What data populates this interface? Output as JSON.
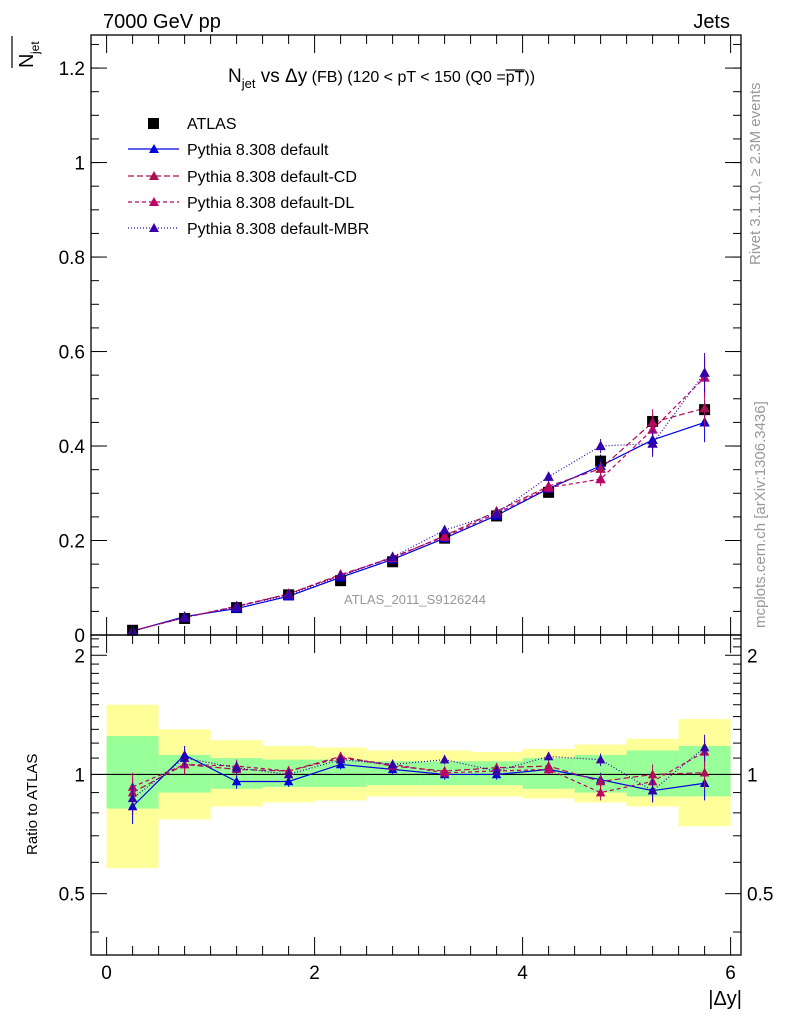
{
  "header": {
    "energy_label": "7000 GeV pp",
    "process_label": "Jets"
  },
  "side_texts": {
    "rivet": "Rivet 3.1.10, ≥ 2.3M events",
    "mcplots": "mcplots.cern.ch [arXiv:1306.3436]"
  },
  "analysis_label": "ATLAS_2011_S9126244",
  "colors": {
    "data": "#000000",
    "default": "#0000dd",
    "cd": "#aa1155",
    "dl": "#bb0066",
    "mbr": "#3300aa",
    "band_inner": "#99ff99",
    "band_outer": "#ffff99"
  },
  "chart_data": [
    {
      "type": "line",
      "panel": "main",
      "title": {
        "pre": "N",
        "sub": "jet",
        "mid": " vs Δy",
        "small": " (FB) (120 < pT < 150 (Q0 =",
        "over": "pT",
        "end": "))"
      },
      "ylabel": {
        "main": "N",
        "sub": "jet"
      },
      "xlim": [
        -0.15,
        6.1
      ],
      "ylim": [
        0,
        1.27
      ],
      "yticks": [
        0,
        0.2,
        0.4,
        0.6,
        0.8,
        1,
        1.2
      ],
      "ytick_labels": [
        "0",
        "0.2",
        "0.4",
        "0.6",
        "0.8",
        "1",
        "1.2"
      ],
      "x": [
        0.25,
        0.75,
        1.25,
        1.75,
        2.25,
        2.75,
        3.25,
        3.75,
        4.25,
        4.75,
        5.25,
        5.75
      ],
      "legend_placement": "top-left",
      "series": [
        {
          "name": "ATLAS",
          "key": "data",
          "marker": "square",
          "values": [
            0.01,
            0.035,
            0.058,
            0.085,
            0.115,
            0.155,
            0.205,
            0.252,
            0.302,
            0.368,
            0.452,
            0.477
          ],
          "errors": [
            0.003,
            0.004,
            0.005,
            0.006,
            0.006,
            0.007,
            0.008,
            0.009,
            0.011,
            0.014,
            0.017,
            0.02
          ]
        },
        {
          "name": "Pythia 8.308 default",
          "key": "default",
          "marker": "triangle",
          "dash": "",
          "values": [
            0.008,
            0.039,
            0.056,
            0.082,
            0.122,
            0.16,
            0.205,
            0.253,
            0.31,
            0.358,
            0.413,
            0.45
          ],
          "errors": [
            0.001,
            0.002,
            0.002,
            0.003,
            0.004,
            0.005,
            0.006,
            0.008,
            0.01,
            0.015,
            0.028,
            0.042
          ]
        },
        {
          "name": "Pythia 8.308 default-CD",
          "key": "cd",
          "marker": "triangle",
          "dash": "6,3",
          "values": [
            0.009,
            0.037,
            0.06,
            0.087,
            0.128,
            0.163,
            0.21,
            0.262,
            0.315,
            0.352,
            0.45,
            0.48
          ],
          "errors": [
            0.001,
            0.002,
            0.002,
            0.003,
            0.004,
            0.005,
            0.006,
            0.008,
            0.01,
            0.015,
            0.028,
            0.042
          ]
        },
        {
          "name": "Pythia 8.308 default-DL",
          "key": "dl",
          "marker": "triangle",
          "dash": "4,3",
          "values": [
            0.009,
            0.037,
            0.061,
            0.087,
            0.126,
            0.165,
            0.208,
            0.257,
            0.312,
            0.33,
            0.435,
            0.545
          ],
          "errors": [
            0.001,
            0.002,
            0.002,
            0.003,
            0.004,
            0.005,
            0.006,
            0.008,
            0.01,
            0.015,
            0.028,
            0.042
          ]
        },
        {
          "name": "Pythia 8.308 default-MBR",
          "key": "mbr",
          "marker": "triangle",
          "dash": "1,2",
          "values": [
            0.009,
            0.037,
            0.06,
            0.085,
            0.125,
            0.165,
            0.222,
            0.257,
            0.335,
            0.4,
            0.405,
            0.555
          ],
          "errors": [
            0.001,
            0.002,
            0.002,
            0.003,
            0.004,
            0.005,
            0.006,
            0.008,
            0.01,
            0.015,
            0.028,
            0.042
          ]
        }
      ]
    },
    {
      "type": "line",
      "panel": "ratio",
      "ylabel": "Ratio to ATLAS",
      "xlabel": "|Δy|",
      "xlim": [
        -0.15,
        6.1
      ],
      "ylim": [
        0.35,
        2.25
      ],
      "yticks": [
        0.5,
        1,
        2
      ],
      "ytick_labels": [
        "0.5",
        "1",
        "2"
      ],
      "xticks": [
        0,
        2,
        4,
        6
      ],
      "xtick_labels": [
        "0",
        "2",
        "4",
        "6"
      ],
      "bins": [
        [
          0,
          0.5
        ],
        [
          0.5,
          1
        ],
        [
          1,
          1.5
        ],
        [
          1.5,
          2
        ],
        [
          2,
          2.5
        ],
        [
          2.5,
          3
        ],
        [
          3,
          3.5
        ],
        [
          3.5,
          4
        ],
        [
          4,
          4.5
        ],
        [
          4.5,
          5
        ],
        [
          5,
          5.5
        ],
        [
          5.5,
          6
        ]
      ],
      "band_inner": [
        [
          0.82,
          1.25
        ],
        [
          0.9,
          1.12
        ],
        [
          0.92,
          1.1
        ],
        [
          0.93,
          1.09
        ],
        [
          0.93,
          1.09
        ],
        [
          0.94,
          1.08
        ],
        [
          0.94,
          1.08
        ],
        [
          0.94,
          1.08
        ],
        [
          0.92,
          1.1
        ],
        [
          0.9,
          1.12
        ],
        [
          0.88,
          1.15
        ],
        [
          0.88,
          1.18
        ]
      ],
      "band_outer": [
        [
          0.58,
          1.5
        ],
        [
          0.77,
          1.3
        ],
        [
          0.83,
          1.22
        ],
        [
          0.85,
          1.18
        ],
        [
          0.86,
          1.17
        ],
        [
          0.88,
          1.15
        ],
        [
          0.88,
          1.15
        ],
        [
          0.88,
          1.14
        ],
        [
          0.87,
          1.16
        ],
        [
          0.85,
          1.19
        ],
        [
          0.83,
          1.23
        ],
        [
          0.74,
          1.38
        ]
      ],
      "x": [
        0.25,
        0.75,
        1.25,
        1.75,
        2.25,
        2.75,
        3.25,
        3.75,
        4.25,
        4.75,
        5.25,
        5.75
      ],
      "series": [
        {
          "key": "default",
          "values": [
            0.83,
            1.12,
            0.96,
            0.96,
            1.06,
            1.03,
            1.0,
            1.0,
            1.03,
            0.97,
            0.91,
            0.95
          ],
          "errors": [
            0.08,
            0.06,
            0.04,
            0.03,
            0.03,
            0.03,
            0.03,
            0.03,
            0.03,
            0.04,
            0.06,
            0.09
          ]
        },
        {
          "key": "cd",
          "values": [
            0.9,
            1.06,
            1.03,
            1.02,
            1.11,
            1.05,
            1.02,
            1.04,
            1.05,
            0.96,
            1.0,
            1.01
          ],
          "errors": [
            0.08,
            0.06,
            0.04,
            0.03,
            0.03,
            0.03,
            0.03,
            0.03,
            0.03,
            0.04,
            0.06,
            0.09
          ]
        },
        {
          "key": "dl",
          "values": [
            0.93,
            1.06,
            1.05,
            1.02,
            1.1,
            1.06,
            1.01,
            1.02,
            1.03,
            0.9,
            0.96,
            1.14
          ],
          "errors": [
            0.08,
            0.06,
            0.04,
            0.03,
            0.03,
            0.03,
            0.03,
            0.03,
            0.03,
            0.04,
            0.06,
            0.09
          ]
        },
        {
          "key": "mbr",
          "values": [
            0.87,
            1.1,
            1.04,
            1.0,
            1.09,
            1.06,
            1.09,
            1.02,
            1.11,
            1.09,
            0.91,
            1.17
          ],
          "errors": [
            0.08,
            0.06,
            0.04,
            0.03,
            0.03,
            0.03,
            0.03,
            0.03,
            0.03,
            0.04,
            0.06,
            0.09
          ]
        }
      ]
    }
  ]
}
